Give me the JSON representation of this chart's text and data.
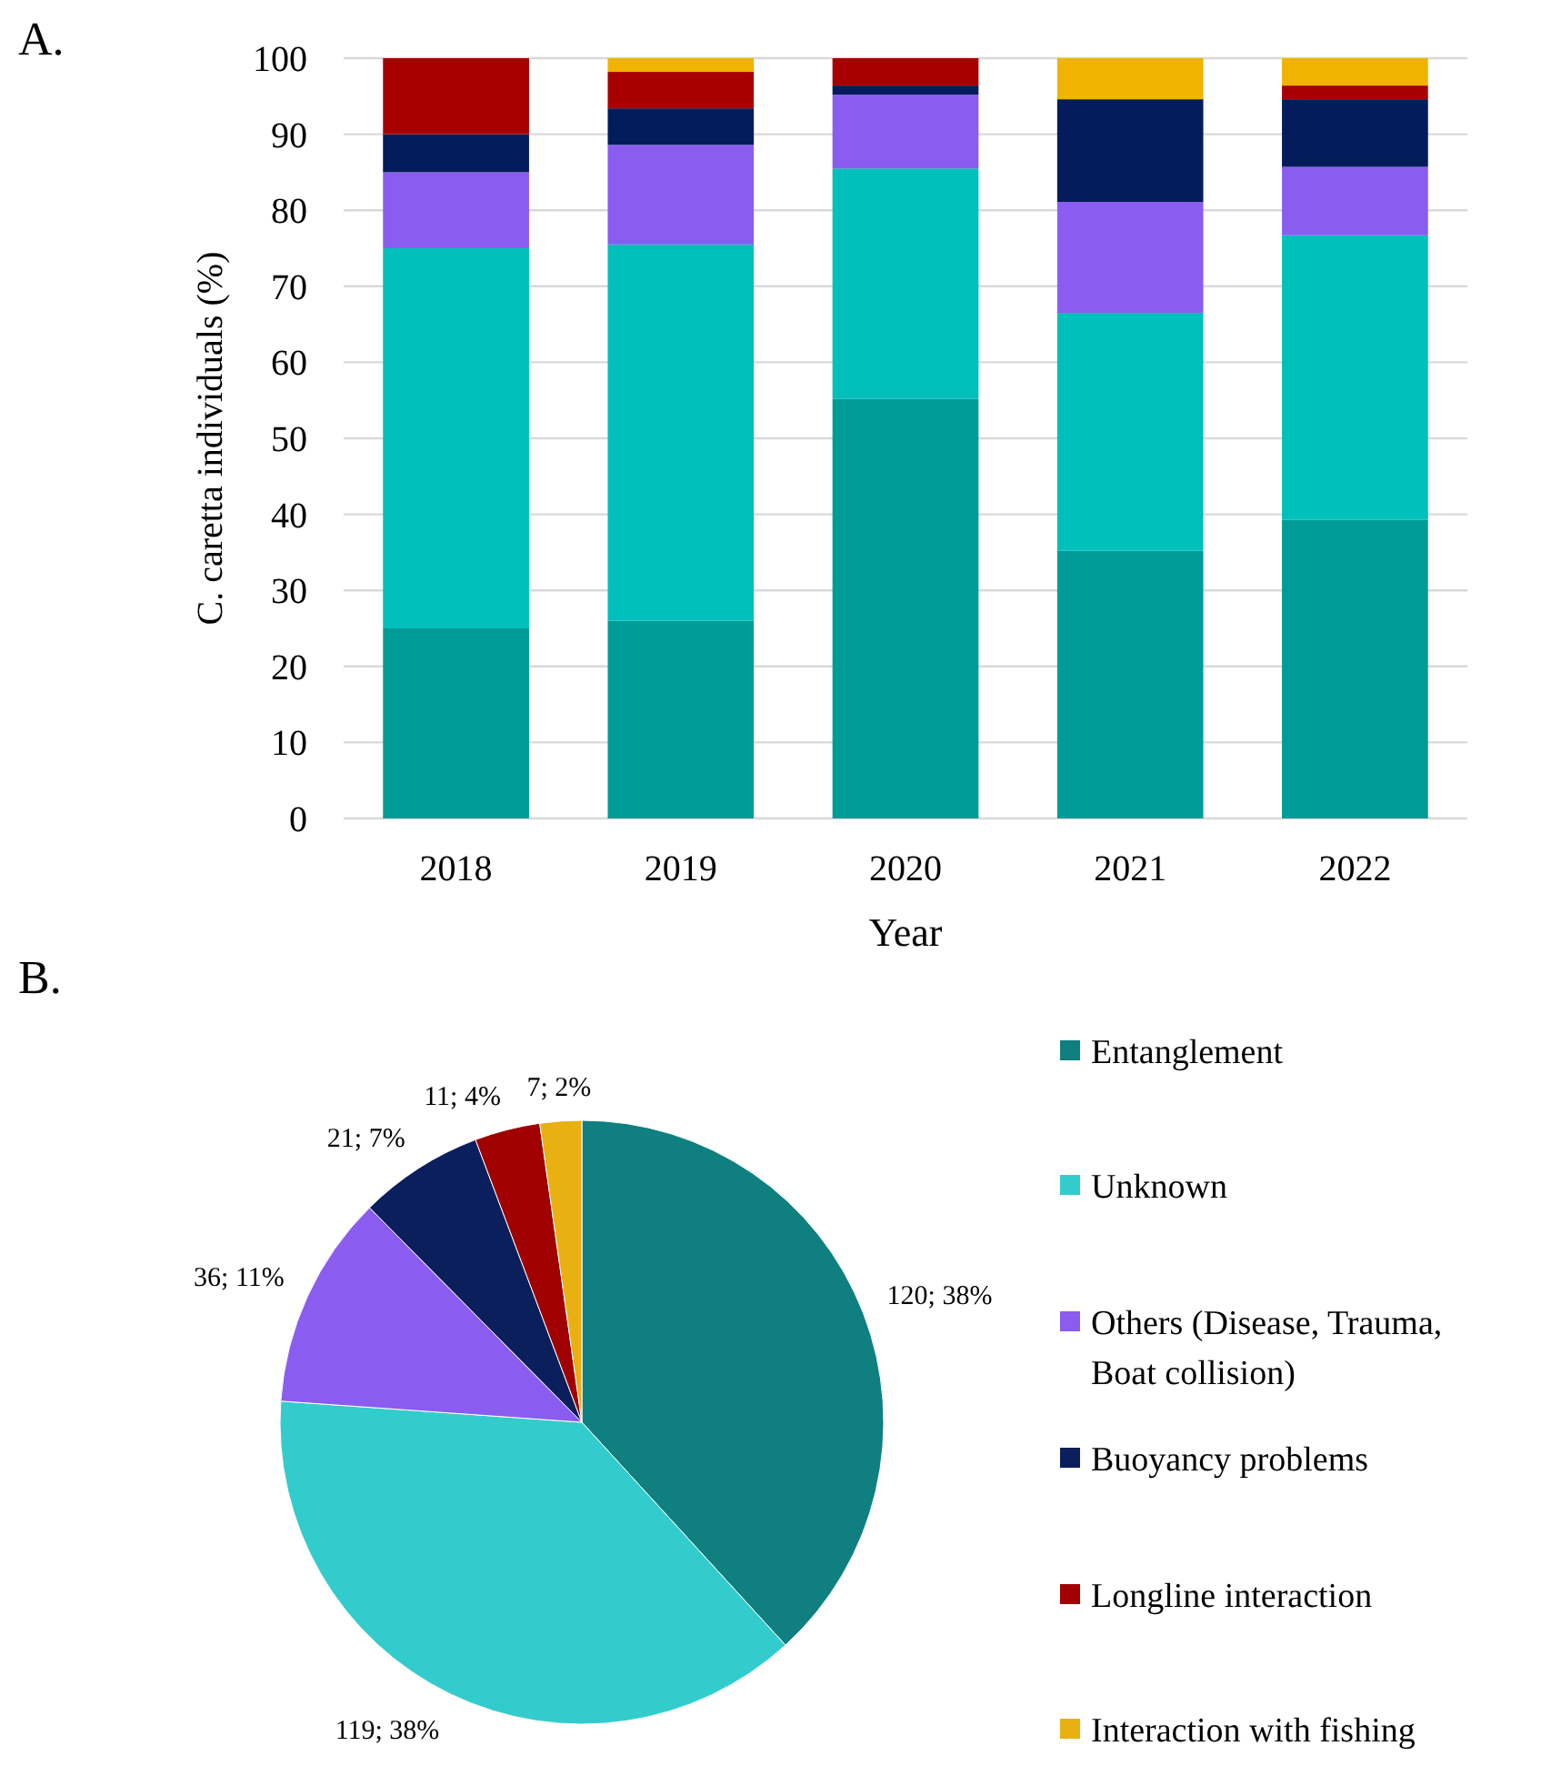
{
  "chart_data": [
    {
      "type": "bar",
      "stacked": true,
      "categories": [
        "2018",
        "2019",
        "2020",
        "2021",
        "2022"
      ],
      "xlabel": "Year",
      "ylabel": "C. caretta individuals  (%)",
      "ylim": [
        0,
        100
      ],
      "yticks": [
        0,
        10,
        20,
        30,
        40,
        50,
        60,
        70,
        80,
        90,
        100
      ],
      "grid": "y",
      "annotations": [
        "A."
      ],
      "series": [
        {
          "color": "#009c98",
          "values": [
            25,
            26,
            55.2,
            35.2,
            39.3
          ]
        },
        {
          "color": "#00c0bc",
          "values": [
            50,
            49.5,
            30.3,
            31.3,
            37.4
          ]
        },
        {
          "color": "#8b5cf0",
          "values": [
            10,
            13.1,
            9.7,
            14.6,
            9.0
          ]
        },
        {
          "color": "#031c5c",
          "values": [
            5,
            4.8,
            1.2,
            13.5,
            8.9
          ]
        },
        {
          "color": "#a80000",
          "values": [
            10,
            4.8,
            3.6,
            0,
            1.8
          ]
        },
        {
          "color": "#f0b400",
          "values": [
            0,
            1.8,
            0,
            5.4,
            3.6
          ]
        }
      ]
    },
    {
      "type": "pie",
      "categories": [
        "Entanglement",
        "Unknown",
        "Others (Disease, Trauma, Boat collision)",
        "Buoyancy problems",
        "Longline interaction",
        "Interaction with fishing"
      ],
      "values": [
        120,
        119,
        36,
        21,
        11,
        7
      ],
      "value_labels": [
        "120; 38%",
        "119; 38%",
        "36; 11%",
        "21; 7%",
        "11; 4%",
        "7; 2%"
      ],
      "colors": [
        "#0f7f7f",
        "#33cccc",
        "#8b5cf0",
        "#0a1f5c",
        "#a00000",
        "#e8b010"
      ],
      "legend": "right",
      "annotations": [
        "B."
      ]
    }
  ]
}
